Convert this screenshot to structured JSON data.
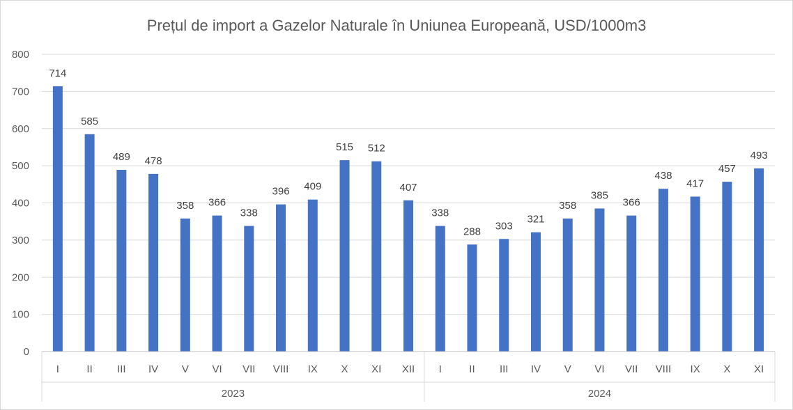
{
  "chart_data": {
    "type": "bar",
    "title": "Prețul de import a Gazelor Naturale în Uniunea Europeană, USD/1000m3",
    "xlabel": "",
    "ylabel": "",
    "ylim": [
      0,
      800
    ],
    "yticks": [
      0,
      100,
      200,
      300,
      400,
      500,
      600,
      700,
      800
    ],
    "grid": true,
    "bar_color": "#4472C4",
    "groups": [
      {
        "label": "2023",
        "categories": [
          "I",
          "II",
          "III",
          "IV",
          "V",
          "VI",
          "VII",
          "VIII",
          "IX",
          "X",
          "XI",
          "XII"
        ],
        "values": [
          714,
          585,
          489,
          478,
          358,
          366,
          338,
          396,
          409,
          515,
          512,
          407
        ]
      },
      {
        "label": "2024",
        "categories": [
          "I",
          "II",
          "III",
          "IV",
          "V",
          "VI",
          "VII",
          "VIII",
          "IX",
          "X",
          "XI"
        ],
        "values": [
          338,
          288,
          303,
          321,
          358,
          385,
          366,
          438,
          417,
          457,
          493
        ]
      }
    ]
  }
}
